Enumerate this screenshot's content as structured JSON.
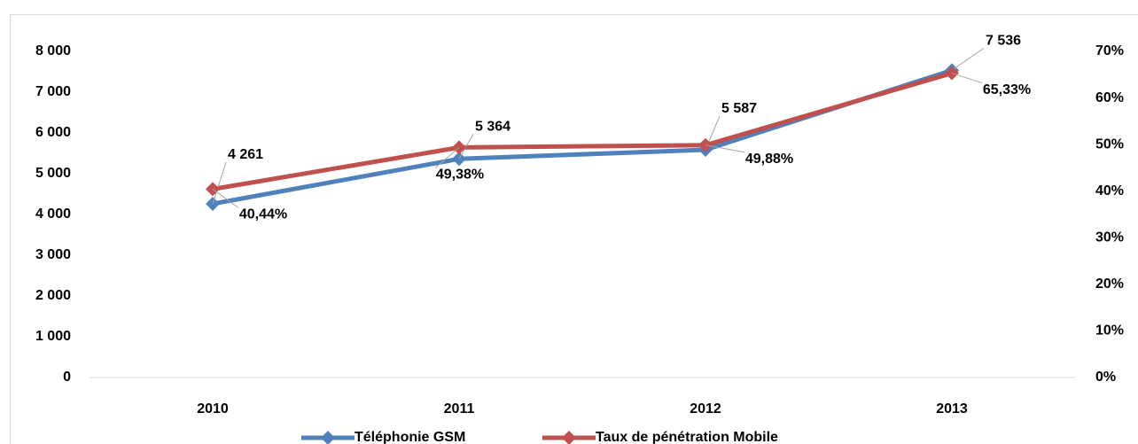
{
  "chart_data": {
    "type": "line",
    "categories": [
      "2010",
      "2011",
      "2012",
      "2013"
    ],
    "series": [
      {
        "name": "Téléphonie GSM",
        "color": "#4f81bd",
        "values": [
          4261,
          5364,
          5587,
          7536
        ],
        "value_labels": [
          "4 261",
          "5 364",
          "5 587",
          "7 536"
        ]
      },
      {
        "name": "Taux de pénétration Mobile",
        "color": "#c0504d",
        "axis": "y2",
        "values": [
          40.44,
          49.38,
          49.88,
          65.33
        ],
        "value_labels": [
          "40,44%",
          "49,38%",
          "49,88%",
          "65,33%"
        ]
      }
    ],
    "ylim": [
      0,
      8000
    ],
    "yticks": [
      0,
      {
        "value": 1000,
        "label": "1 000"
      },
      {
        "value": 2000,
        "label": "2 000"
      },
      {
        "value": 3000,
        "label": "3 000"
      },
      {
        "value": 4000,
        "label": "4 000"
      },
      {
        "value": 5000,
        "label": "5 000"
      },
      {
        "value": 6000,
        "label": "6 000"
      },
      {
        "value": 7000,
        "label": "7 000"
      },
      {
        "value": 8000,
        "label": "8 000"
      }
    ],
    "y2lim": [
      0,
      70
    ],
    "y2ticks": [
      {
        "value": 0,
        "label": "0%"
      },
      {
        "value": 10,
        "label": "10%"
      },
      {
        "value": 20,
        "label": "20%"
      },
      {
        "value": 30,
        "label": "30%"
      },
      {
        "value": 40,
        "label": "40%"
      },
      {
        "value": 50,
        "label": "50%"
      },
      {
        "value": 60,
        "label": "60%"
      },
      {
        "value": 70,
        "label": "70%"
      }
    ],
    "legend": "bottom"
  }
}
